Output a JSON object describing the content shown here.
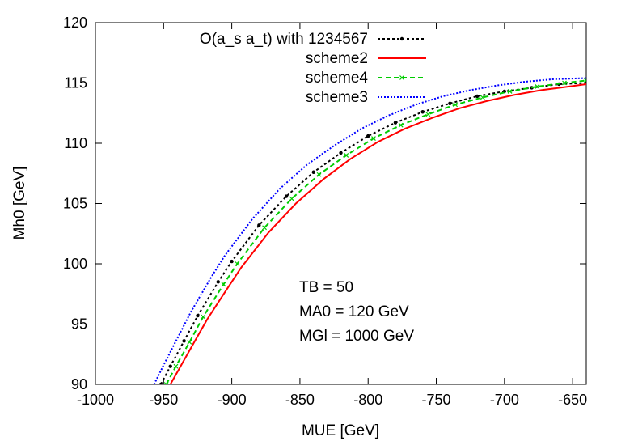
{
  "chart_data": {
    "type": "line",
    "title": "",
    "xlabel": "MUE [GeV]",
    "ylabel": "Mh0 [GeV]",
    "xlim": [
      -1000,
      -640
    ],
    "ylim": [
      90,
      120
    ],
    "xticks": [
      -1000,
      -950,
      -900,
      -850,
      -800,
      -750,
      -700,
      -650
    ],
    "yticks": [
      90,
      95,
      100,
      105,
      110,
      115,
      120
    ],
    "grid": false,
    "legend_position": "top-left",
    "annotations": [
      "TB = 50",
      "MA0 = 120 GeV",
      "MGl = 1000 GeV"
    ],
    "series": [
      {
        "name": "O(a_s a_t) with 1234567",
        "color": "#000000",
        "dash": "3,3",
        "marker": "dot",
        "x": [
          -952,
          -945,
          -935,
          -925,
          -910,
          -900,
          -880,
          -860,
          -840,
          -820,
          -800,
          -780,
          -760,
          -740,
          -720,
          -700,
          -680,
          -660,
          -640
        ],
        "y": [
          90,
          91.5,
          93.6,
          95.7,
          98.5,
          100.2,
          103.2,
          105.6,
          107.6,
          109.2,
          110.6,
          111.7,
          112.6,
          113.3,
          113.9,
          114.3,
          114.6,
          114.9,
          115.0
        ]
      },
      {
        "name": "scheme2",
        "color": "#ff0000",
        "dash": "",
        "marker": "none",
        "x": [
          -945,
          -938,
          -928,
          -918,
          -903,
          -893,
          -873,
          -853,
          -833,
          -813,
          -793,
          -773,
          -753,
          -733,
          -713,
          -693,
          -673,
          -653,
          -640
        ],
        "y": [
          90,
          91.4,
          93.4,
          95.4,
          98.0,
          99.7,
          102.6,
          105.0,
          107.0,
          108.7,
          110.1,
          111.2,
          112.1,
          112.9,
          113.5,
          114.0,
          114.4,
          114.7,
          114.9
        ]
      },
      {
        "name": "scheme4",
        "color": "#00cc00",
        "dash": "6,4",
        "marker": "x",
        "x": [
          -948,
          -941,
          -931,
          -921,
          -906,
          -896,
          -876,
          -856,
          -836,
          -816,
          -796,
          -776,
          -756,
          -736,
          -716,
          -696,
          -676,
          -656,
          -640
        ],
        "y": [
          90,
          91.5,
          93.5,
          95.6,
          98.3,
          100.0,
          103.0,
          105.4,
          107.4,
          109.0,
          110.4,
          111.5,
          112.4,
          113.2,
          113.8,
          114.3,
          114.7,
          115.0,
          115.2
        ]
      },
      {
        "name": "scheme3",
        "color": "#0000ff",
        "dash": "2,2",
        "marker": "none",
        "x": [
          -957,
          -950,
          -940,
          -930,
          -915,
          -905,
          -885,
          -865,
          -845,
          -825,
          -805,
          -785,
          -765,
          -745,
          -725,
          -705,
          -685,
          -665,
          -640
        ],
        "y": [
          90,
          91.6,
          93.8,
          96.0,
          98.9,
          100.7,
          103.7,
          106.2,
          108.2,
          109.8,
          111.2,
          112.3,
          113.2,
          113.9,
          114.4,
          114.8,
          115.1,
          115.3,
          115.4
        ]
      }
    ]
  }
}
